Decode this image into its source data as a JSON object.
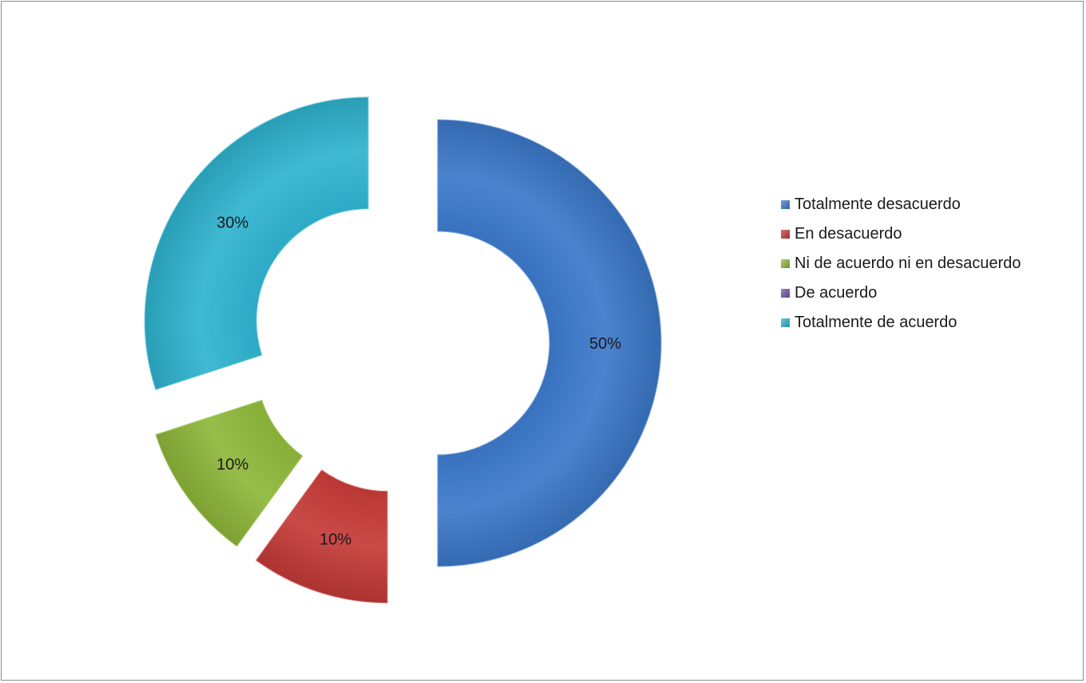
{
  "chart_data": {
    "type": "pie",
    "style": "exploded donut with 3D bevel",
    "categories": [
      "Totalmente desacuerdo",
      "En desacuerdo",
      "Ni de acuerdo ni en desacuerdo",
      "De acuerdo",
      "Totalmente de acuerdo"
    ],
    "values": [
      50,
      10,
      10,
      0,
      30
    ],
    "unit": "%",
    "data_labels": [
      "50%",
      "10%",
      "10%",
      "",
      "30%"
    ],
    "colors": [
      "#3b78c9",
      "#c43a37",
      "#8eb73a",
      "#7452a3",
      "#2fb3cf"
    ],
    "legend_position": "right",
    "title": ""
  }
}
